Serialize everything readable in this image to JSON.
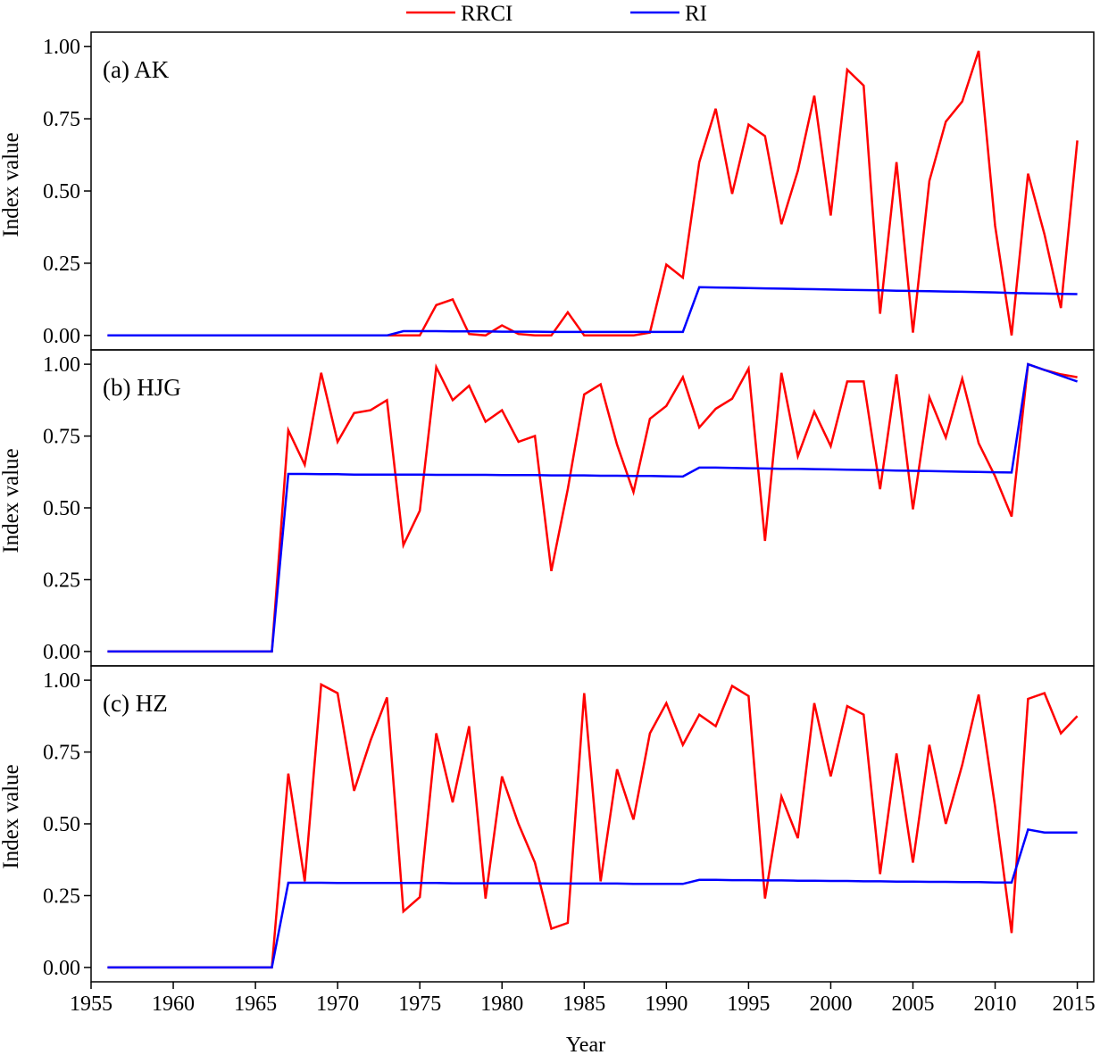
{
  "chart_data": {
    "type": "line",
    "title": "",
    "xlabel": "Year",
    "ylabel": "Index value",
    "legend": {
      "placement": "top-center",
      "entries": [
        {
          "name": "RRCI",
          "color": "#ff0000"
        },
        {
          "name": "RI",
          "color": "#0000ff"
        }
      ]
    },
    "xlim": [
      1955,
      2016
    ],
    "xticks": [
      1955,
      1960,
      1965,
      1970,
      1975,
      1980,
      1985,
      1990,
      1995,
      2000,
      2005,
      2010,
      2015
    ],
    "ylim": [
      -0.05,
      1.05
    ],
    "yticks": [
      "0.00",
      "0.25",
      "0.50",
      "0.75",
      "1.00"
    ],
    "grid": false,
    "x": [
      1956,
      1957,
      1958,
      1959,
      1960,
      1961,
      1962,
      1963,
      1964,
      1965,
      1966,
      1967,
      1968,
      1969,
      1970,
      1971,
      1972,
      1973,
      1974,
      1975,
      1976,
      1977,
      1978,
      1979,
      1980,
      1981,
      1982,
      1983,
      1984,
      1985,
      1986,
      1987,
      1988,
      1989,
      1990,
      1991,
      1992,
      1993,
      1994,
      1995,
      1996,
      1997,
      1998,
      1999,
      2000,
      2001,
      2002,
      2003,
      2004,
      2005,
      2006,
      2007,
      2008,
      2009,
      2010,
      2011,
      2012,
      2013,
      2014,
      2015
    ],
    "panels": [
      {
        "label": "(a) AK",
        "series": [
          {
            "name": "RRCI",
            "color": "#ff0000",
            "values": [
              0,
              0,
              0,
              0,
              0,
              0,
              0,
              0,
              0,
              0,
              0,
              0,
              0,
              0,
              0,
              0,
              0,
              0,
              0,
              0,
              0.105,
              0.125,
              0.005,
              0,
              0.035,
              0.005,
              0,
              0,
              0.08,
              0,
              0,
              0,
              0,
              0.01,
              0.245,
              0.2,
              0.6,
              0.785,
              0.49,
              0.73,
              0.69,
              0.385,
              0.57,
              0.83,
              0.415,
              0.92,
              0.865,
              0.075,
              0.6,
              0.01,
              0.535,
              0.74,
              0.81,
              0.985,
              0.38,
              0,
              0.56,
              0.35,
              0.095,
              0.675
            ]
          },
          {
            "name": "RI",
            "color": "#0000ff",
            "values": [
              0,
              0,
              0,
              0,
              0,
              0,
              0,
              0,
              0,
              0,
              0,
              0,
              0,
              0,
              0,
              0,
              0,
              0,
              0.015,
              0.015,
              0.015,
              0.014,
              0.014,
              0.014,
              0.013,
              0.013,
              0.013,
              0.012,
              0.012,
              0.012,
              0.012,
              0.012,
              0.012,
              0.012,
              0.012,
              0.012,
              0.167,
              0.166,
              0.165,
              0.164,
              0.163,
              0.162,
              0.161,
              0.16,
              0.159,
              0.158,
              0.157,
              0.156,
              0.155,
              0.154,
              0.153,
              0.152,
              0.151,
              0.15,
              0.149,
              0.147,
              0.146,
              0.145,
              0.144,
              0.143
            ]
          }
        ]
      },
      {
        "label": "(b) HJG",
        "series": [
          {
            "name": "RRCI",
            "color": "#ff0000",
            "values": [
              0,
              0,
              0,
              0,
              0,
              0,
              0,
              0,
              0,
              0,
              0,
              0.77,
              0.65,
              0.97,
              0.73,
              0.83,
              0.84,
              0.875,
              0.37,
              0.49,
              0.99,
              0.875,
              0.925,
              0.8,
              0.84,
              0.73,
              0.75,
              0.28,
              0.565,
              0.895,
              0.93,
              0.72,
              0.555,
              0.81,
              0.855,
              0.955,
              0.78,
              0.845,
              0.88,
              0.985,
              0.385,
              0.97,
              0.68,
              0.835,
              0.715,
              0.94,
              0.94,
              0.565,
              0.965,
              0.495,
              0.885,
              0.745,
              0.95,
              0.725,
              0.61,
              0.47,
              1.0,
              0.98,
              0.965,
              0.955
            ]
          },
          {
            "name": "RI",
            "color": "#0000ff",
            "values": [
              0,
              0,
              0,
              0,
              0,
              0,
              0,
              0,
              0,
              0,
              0,
              0.618,
              0.618,
              0.617,
              0.617,
              0.616,
              0.616,
              0.616,
              0.616,
              0.616,
              0.615,
              0.615,
              0.615,
              0.615,
              0.614,
              0.614,
              0.614,
              0.613,
              0.613,
              0.613,
              0.612,
              0.612,
              0.611,
              0.611,
              0.61,
              0.609,
              0.64,
              0.64,
              0.639,
              0.638,
              0.637,
              0.636,
              0.636,
              0.635,
              0.634,
              0.633,
              0.632,
              0.631,
              0.63,
              0.629,
              0.628,
              0.627,
              0.626,
              0.625,
              0.624,
              0.623,
              1.0,
              0.98,
              0.96,
              0.94
            ]
          }
        ]
      },
      {
        "label": "(c) HZ",
        "series": [
          {
            "name": "RRCI",
            "color": "#ff0000",
            "values": [
              0,
              0,
              0,
              0,
              0,
              0,
              0,
              0,
              0,
              0,
              0,
              0.675,
              0.3,
              0.985,
              0.955,
              0.615,
              0.79,
              0.94,
              0.195,
              0.245,
              0.815,
              0.575,
              0.84,
              0.24,
              0.665,
              0.5,
              0.365,
              0.135,
              0.155,
              0.955,
              0.3,
              0.69,
              0.515,
              0.815,
              0.92,
              0.775,
              0.88,
              0.84,
              0.98,
              0.945,
              0.24,
              0.595,
              0.45,
              0.92,
              0.665,
              0.91,
              0.88,
              0.325,
              0.745,
              0.365,
              0.775,
              0.5,
              0.705,
              0.95,
              0.56,
              0.12,
              0.935,
              0.955,
              0.815,
              0.875
            ]
          },
          {
            "name": "RI",
            "color": "#0000ff",
            "values": [
              0,
              0,
              0,
              0,
              0,
              0,
              0,
              0,
              0,
              0,
              0,
              0.295,
              0.295,
              0.295,
              0.294,
              0.294,
              0.294,
              0.294,
              0.294,
              0.294,
              0.294,
              0.293,
              0.293,
              0.293,
              0.293,
              0.293,
              0.293,
              0.292,
              0.292,
              0.292,
              0.292,
              0.292,
              0.291,
              0.291,
              0.291,
              0.291,
              0.305,
              0.305,
              0.304,
              0.304,
              0.303,
              0.303,
              0.302,
              0.302,
              0.301,
              0.301,
              0.3,
              0.3,
              0.299,
              0.299,
              0.298,
              0.298,
              0.297,
              0.297,
              0.296,
              0.296,
              0.48,
              0.47,
              0.47,
              0.47
            ]
          }
        ]
      }
    ]
  }
}
